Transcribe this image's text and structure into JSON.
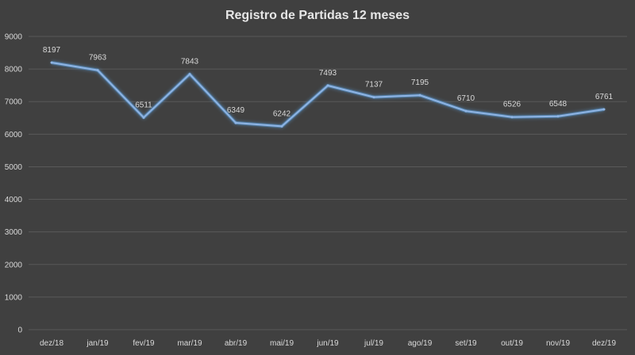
{
  "chart_data": {
    "type": "line",
    "title": "Registro de Partidas 12 meses",
    "xlabel": "",
    "ylabel": "",
    "categories": [
      "dez/18",
      "jan/19",
      "fev/19",
      "mar/19",
      "abr/19",
      "mai/19",
      "jun/19",
      "jul/19",
      "ago/19",
      "set/19",
      "out/19",
      "nov/19",
      "dez/19"
    ],
    "series": [
      {
        "values": [
          8197,
          7963,
          6511,
          7843,
          6349,
          6242,
          7493,
          7137,
          7195,
          6710,
          6526,
          6548,
          6761
        ]
      }
    ],
    "ylim": [
      0,
      9000
    ],
    "y_ticks": [
      0,
      1000,
      2000,
      3000,
      4000,
      5000,
      6000,
      7000,
      8000,
      9000
    ],
    "grid": true,
    "data_labels": true,
    "legend": "none",
    "colors": {
      "background": "#404040",
      "line": "#8fb4e3",
      "glow": "#5b9bd5",
      "grid": "#595959",
      "text": "#d9d9d9"
    }
  }
}
